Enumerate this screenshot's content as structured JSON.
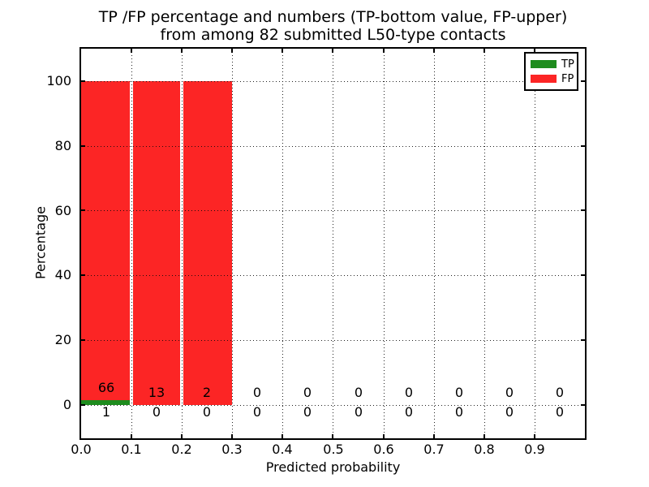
{
  "title": {
    "line1": "TP /FP percentage and numbers (TP-bottom value, FP-upper)",
    "line2": "from among 82 submitted L50-type contacts"
  },
  "legend": {
    "position": "upper right",
    "items": [
      {
        "label": "TP",
        "color": "#1e8c1e"
      },
      {
        "label": "FP",
        "color": "#fc2525"
      }
    ]
  },
  "axes": {
    "x": {
      "label": "Predicted probability",
      "ticks": [
        "0.0",
        "0.1",
        "0.2",
        "0.3",
        "0.4",
        "0.5",
        "0.6",
        "0.7",
        "0.8",
        "0.9"
      ]
    },
    "y": {
      "label": "Percentage",
      "ticks": [
        "0",
        "20",
        "40",
        "60",
        "80",
        "100"
      ]
    }
  },
  "annotations": {
    "fp_counts": [
      "66",
      "13",
      "2",
      "0",
      "0",
      "0",
      "0",
      "0",
      "0",
      "0"
    ],
    "tp_counts": [
      "1",
      "0",
      "0",
      "0",
      "0",
      "0",
      "0",
      "0",
      "0",
      "0"
    ]
  },
  "colors": {
    "tp": "#1e8c1e",
    "fp": "#fc2525",
    "grid": "#0a0a0a",
    "background": "#ffffff"
  },
  "chart_data": {
    "type": "bar",
    "stacked": true,
    "title": "TP /FP percentage and numbers (TP-bottom value, FP-upper) from among 82 submitted L50-type contacts",
    "xlabel": "Predicted probability",
    "ylabel": "Percentage",
    "xlim": [
      0.0,
      1.0
    ],
    "ylim": [
      -10,
      110
    ],
    "yticks": [
      0,
      20,
      40,
      60,
      80,
      100
    ],
    "grid": "dotted",
    "legend_position": "upper right",
    "total_submitted": 82,
    "bin_edges": [
      0.0,
      0.1,
      0.2,
      0.3,
      0.4,
      0.5,
      0.6,
      0.7,
      0.8,
      0.9,
      1.0
    ],
    "bin_centers": [
      0.05,
      0.15,
      0.25,
      0.35,
      0.45,
      0.55,
      0.65,
      0.75,
      0.85,
      0.95
    ],
    "series": [
      {
        "name": "TP",
        "color": "#1e8c1e",
        "counts": [
          1,
          0,
          0,
          0,
          0,
          0,
          0,
          0,
          0,
          0
        ],
        "percent": [
          1.5,
          0,
          0,
          0,
          0,
          0,
          0,
          0,
          0,
          0
        ]
      },
      {
        "name": "FP",
        "color": "#fc2525",
        "counts": [
          66,
          13,
          2,
          0,
          0,
          0,
          0,
          0,
          0,
          0
        ],
        "percent": [
          98.5,
          100,
          100,
          0,
          0,
          0,
          0,
          0,
          0,
          0
        ]
      }
    ]
  },
  "layout_note": ""
}
